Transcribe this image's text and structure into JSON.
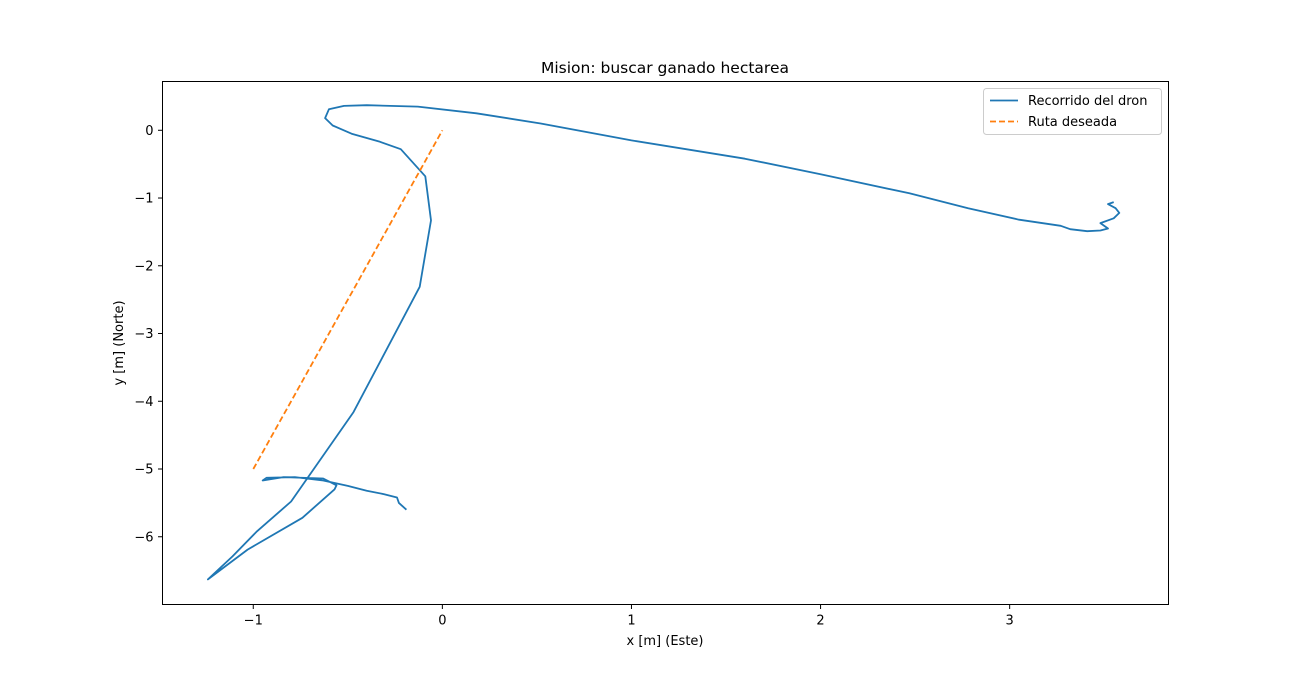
{
  "chart_data": {
    "type": "line",
    "title": "Mision: buscar ganado hectarea",
    "xlabel": "x [m] (Este)",
    "ylabel": "y [m] (Norte)",
    "xlim": [
      -1.48,
      3.84
    ],
    "ylim": [
      -7.0,
      0.72
    ],
    "xticks": [
      -1,
      0,
      1,
      2,
      3
    ],
    "yticks": [
      0,
      -1,
      -2,
      -3,
      -4,
      -5,
      -6
    ],
    "xtick_labels": [
      "−1",
      "0",
      "1",
      "2",
      "3"
    ],
    "ytick_labels": [
      "0",
      "−1",
      "−2",
      "−3",
      "−4",
      "−5",
      "−6"
    ],
    "grid": false,
    "legend_position": "top-right",
    "series": [
      {
        "name": "Recorrido del dron",
        "color": "#1f77b4",
        "style": "solid",
        "points": [
          [
            -0.19,
            -5.6
          ],
          [
            -0.23,
            -5.5
          ],
          [
            -0.24,
            -5.42
          ],
          [
            -0.31,
            -5.37
          ],
          [
            -0.4,
            -5.32
          ],
          [
            -0.5,
            -5.25
          ],
          [
            -0.63,
            -5.17
          ],
          [
            -0.78,
            -5.12
          ],
          [
            -0.93,
            -5.13
          ],
          [
            -0.95,
            -5.17
          ],
          [
            -0.91,
            -5.15
          ],
          [
            -0.84,
            -5.12
          ],
          [
            -0.63,
            -5.14
          ],
          [
            -0.56,
            -5.24
          ],
          [
            -0.57,
            -5.3
          ],
          [
            -0.74,
            -5.72
          ],
          [
            -1.03,
            -6.19
          ],
          [
            -1.24,
            -6.63
          ],
          [
            -1.11,
            -6.29
          ],
          [
            -0.98,
            -5.92
          ],
          [
            -0.8,
            -5.48
          ],
          [
            -0.47,
            -4.16
          ],
          [
            -0.12,
            -2.31
          ],
          [
            -0.06,
            -1.33
          ],
          [
            -0.09,
            -0.68
          ],
          [
            -0.22,
            -0.28
          ],
          [
            -0.33,
            -0.17
          ],
          [
            -0.48,
            -0.05
          ],
          [
            -0.58,
            0.07
          ],
          [
            -0.62,
            0.18
          ],
          [
            -0.6,
            0.31
          ],
          [
            -0.52,
            0.36
          ],
          [
            -0.4,
            0.37
          ],
          [
            -0.13,
            0.35
          ],
          [
            0.18,
            0.25
          ],
          [
            0.52,
            0.1
          ],
          [
            1.0,
            -0.15
          ],
          [
            1.6,
            -0.42
          ],
          [
            2.0,
            -0.65
          ],
          [
            2.47,
            -0.93
          ],
          [
            2.78,
            -1.15
          ],
          [
            3.05,
            -1.32
          ],
          [
            3.27,
            -1.41
          ],
          [
            3.32,
            -1.46
          ],
          [
            3.41,
            -1.49
          ],
          [
            3.48,
            -1.48
          ],
          [
            3.52,
            -1.45
          ],
          [
            3.48,
            -1.37
          ],
          [
            3.55,
            -1.3
          ],
          [
            3.58,
            -1.22
          ],
          [
            3.56,
            -1.15
          ],
          [
            3.52,
            -1.09
          ],
          [
            3.55,
            -1.06
          ]
        ]
      },
      {
        "name": "Ruta deseada",
        "color": "#ff7f0e",
        "style": "dashed",
        "points": [
          [
            -1.0,
            -5.0
          ],
          [
            0.0,
            0.0
          ]
        ]
      }
    ]
  }
}
